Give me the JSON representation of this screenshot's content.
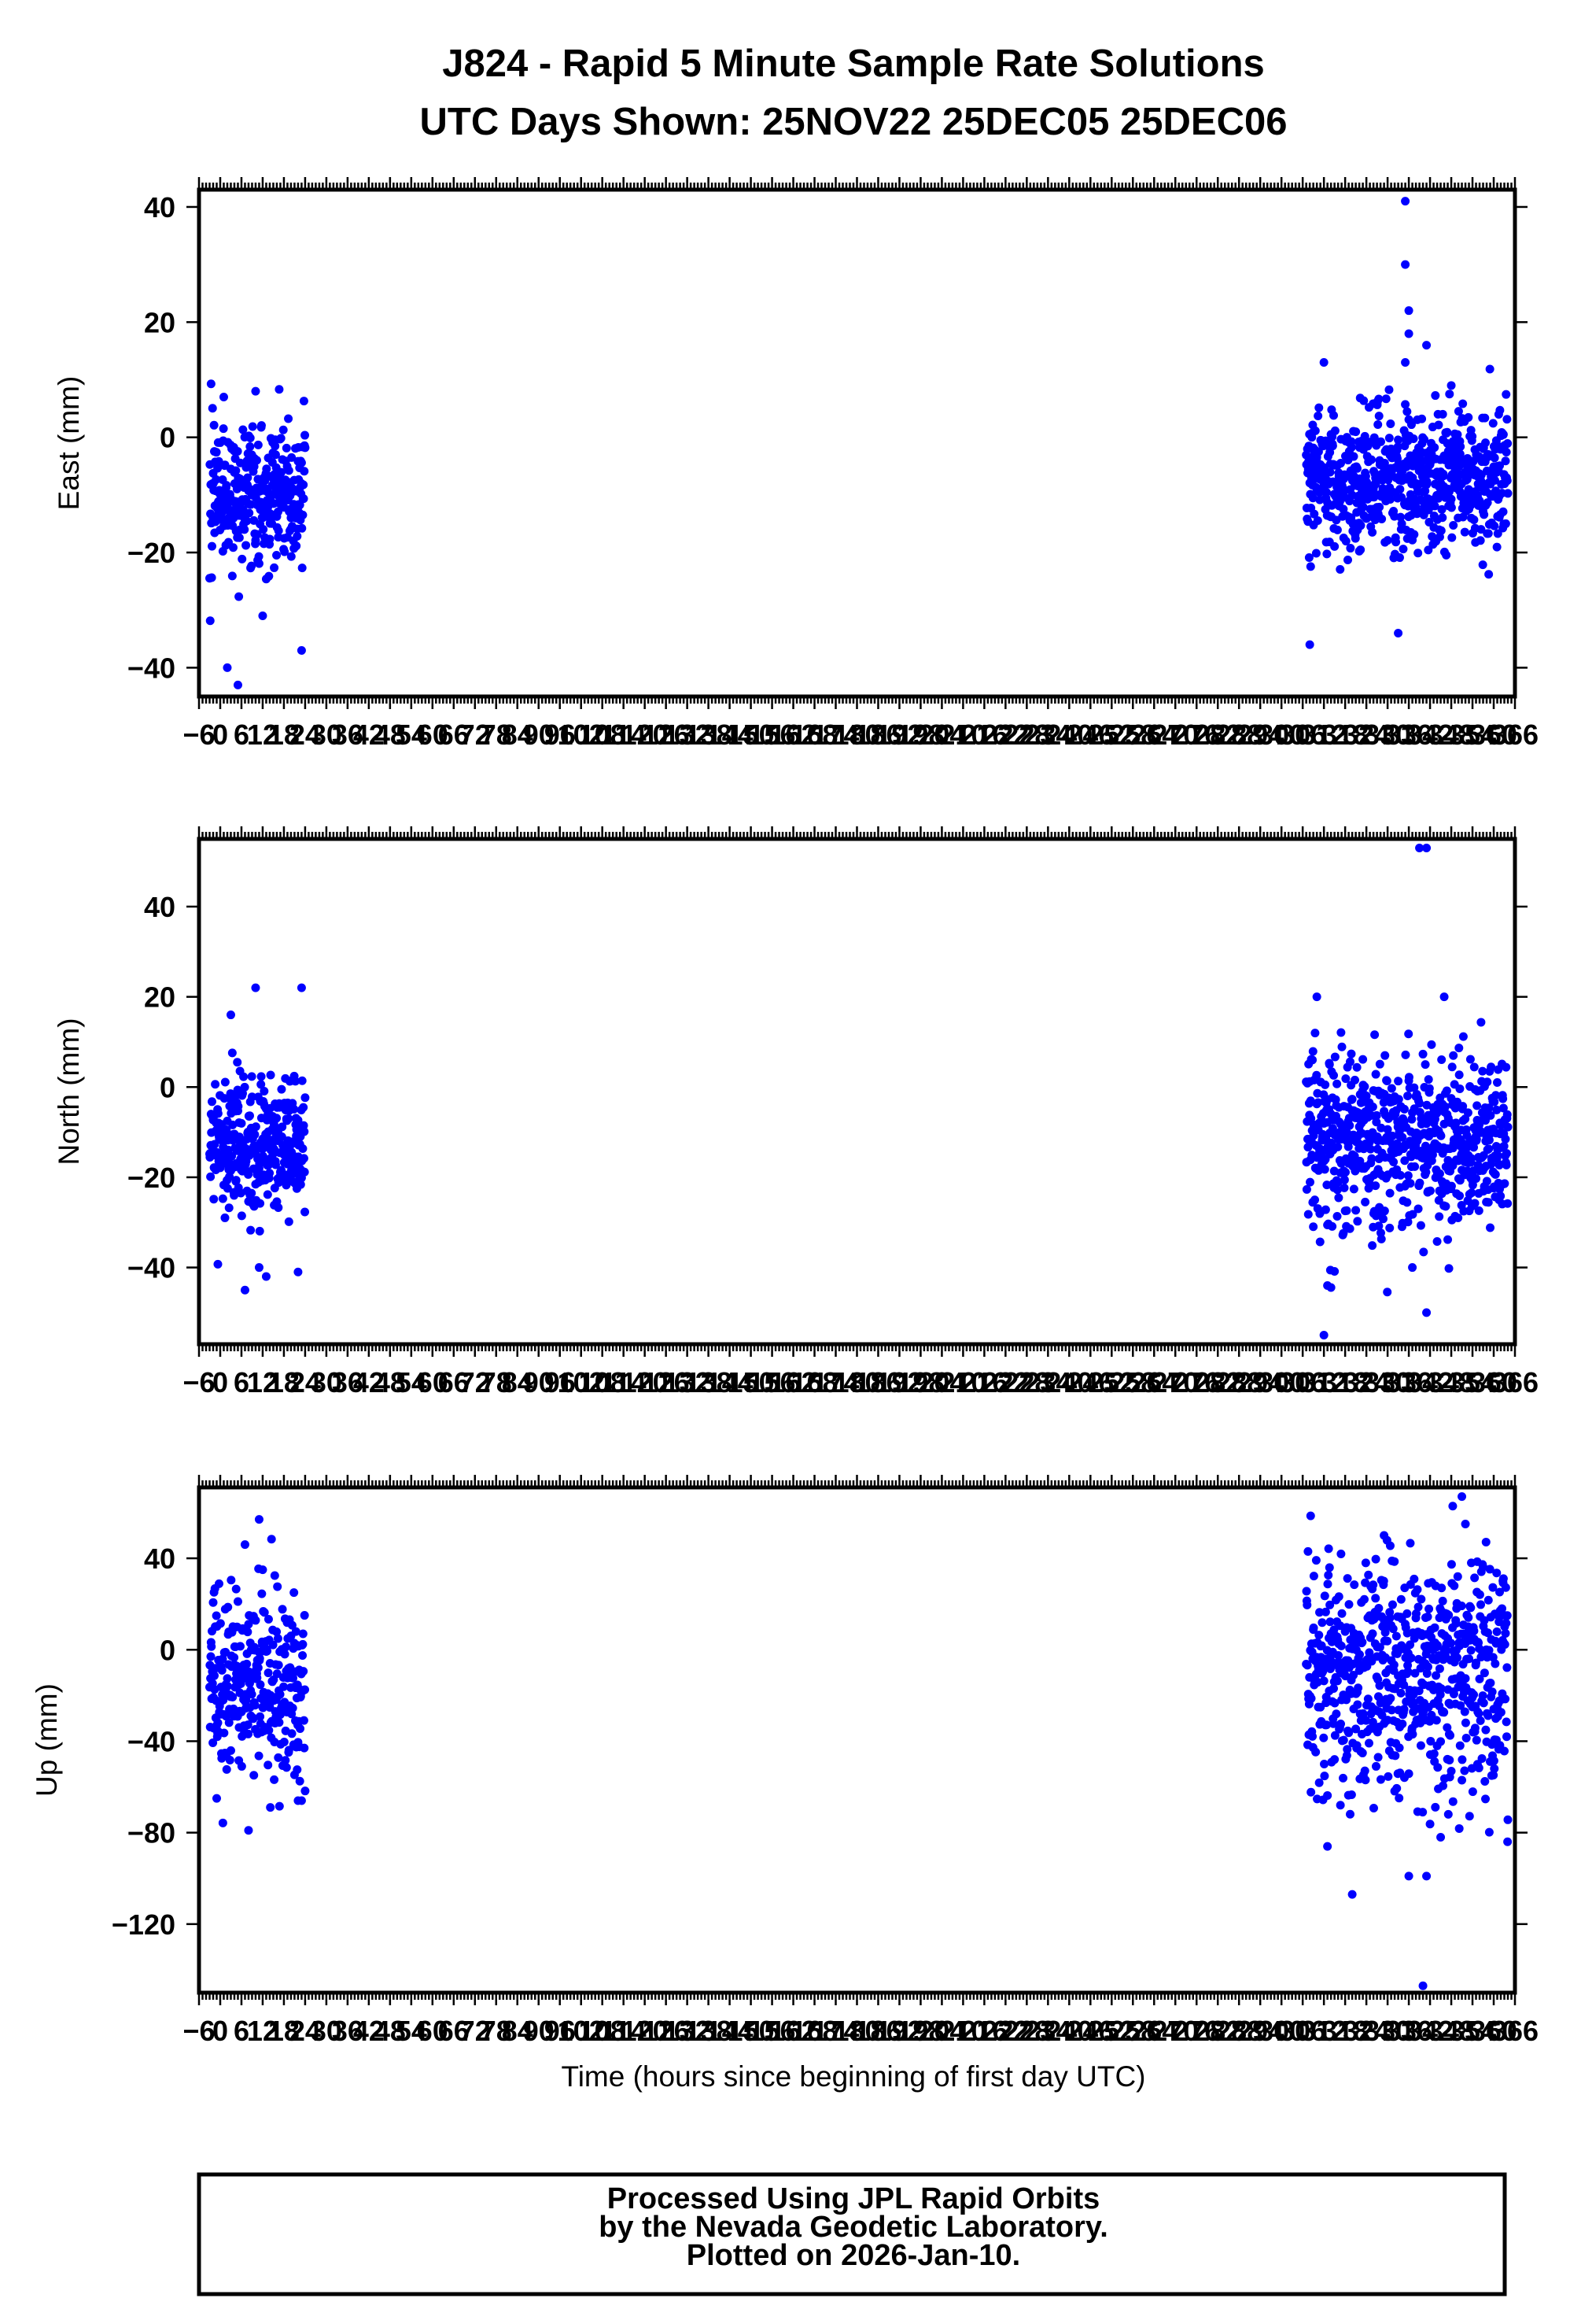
{
  "title": {
    "line1": "J824 - Rapid 5 Minute Sample Rate Solutions",
    "line2": "UTC Days Shown:  25NOV22 25DEC05 25DEC06"
  },
  "footer": {
    "line1": "Processed Using JPL Rapid Orbits",
    "line2": "by the Nevada Geodetic Laboratory.",
    "line3": "Plotted on 2026-Jan-10."
  },
  "colors": {
    "points": "#0000ff",
    "frame": "#000000"
  },
  "chart_data": [
    {
      "type": "scatter",
      "ylabel": "East (mm)",
      "xlabel": "",
      "xlim": [
        -6,
        366
      ],
      "ylim": [
        -45,
        43
      ],
      "yticks": [
        -40,
        -20,
        0,
        20,
        40
      ],
      "xtick_step": 6,
      "series": [
        {
          "x_range": [
            -3,
            24
          ],
          "y_center": -10,
          "y_spread": 6,
          "outliers": [
            [
              2,
              -40
            ],
            [
              5,
              -43
            ],
            [
              23,
              -37
            ],
            [
              10,
              8
            ],
            [
              1,
              7
            ],
            [
              12,
              -31
            ]
          ]
        },
        {
          "x_range": [
            307,
            364
          ],
          "y_center": -7,
          "y_spread": 6,
          "outliers": [
            [
              335,
              41
            ],
            [
              335,
              30
            ],
            [
              336,
              22
            ],
            [
              336,
              18
            ],
            [
              335,
              13
            ],
            [
              341,
              16
            ],
            [
              308,
              -36
            ],
            [
              333,
              -34
            ],
            [
              312,
              13
            ],
            [
              348,
              9
            ]
          ]
        }
      ]
    },
    {
      "type": "scatter",
      "ylabel": "North (mm)",
      "xlabel": "",
      "xlim": [
        -6,
        366
      ],
      "ylim": [
        -57,
        55
      ],
      "yticks": [
        -40,
        -20,
        0,
        20,
        40
      ],
      "xtick_step": 6,
      "series": [
        {
          "x_range": [
            -3,
            24
          ],
          "y_center": -13,
          "y_spread": 8,
          "outliers": [
            [
              7,
              -45
            ],
            [
              13,
              -42
            ],
            [
              22,
              -41
            ],
            [
              11,
              -40
            ],
            [
              10,
              22
            ],
            [
              23,
              22
            ],
            [
              3,
              16
            ]
          ]
        },
        {
          "x_range": [
            307,
            364
          ],
          "y_center": -12,
          "y_spread": 9,
          "outliers": [
            [
              339,
              53
            ],
            [
              341,
              53
            ],
            [
              312,
              -55
            ],
            [
              341,
              -50
            ],
            [
              313,
              -44
            ],
            [
              337,
              -40
            ],
            [
              346,
              20
            ],
            [
              310,
              20
            ]
          ]
        }
      ]
    },
    {
      "type": "scatter",
      "ylabel": "Up (mm)",
      "xlabel": "Time (hours since beginning of first day UTC)",
      "xlim": [
        -6,
        366
      ],
      "ylim": [
        -150,
        71
      ],
      "yticks": [
        -120,
        -80,
        -40,
        0,
        40
      ],
      "xtick_step": 6,
      "series": [
        {
          "x_range": [
            -3,
            24
          ],
          "y_center": -15,
          "y_spread": 20,
          "outliers": [
            [
              11,
              57
            ],
            [
              7,
              46
            ],
            [
              8,
              -79
            ],
            [
              -1,
              -65
            ],
            [
              23,
              -66
            ],
            [
              22,
              -66
            ],
            [
              12,
              35
            ]
          ]
        },
        {
          "x_range": [
            307,
            364
          ],
          "y_center": -10,
          "y_spread": 25,
          "outliers": [
            [
              351,
              67
            ],
            [
              352,
              55
            ],
            [
              340,
              -147
            ],
            [
              320,
              -107
            ],
            [
              336,
              -99
            ],
            [
              341,
              -99
            ],
            [
              313,
              -86
            ],
            [
              345,
              -82
            ],
            [
              329,
              50
            ]
          ]
        }
      ]
    }
  ]
}
